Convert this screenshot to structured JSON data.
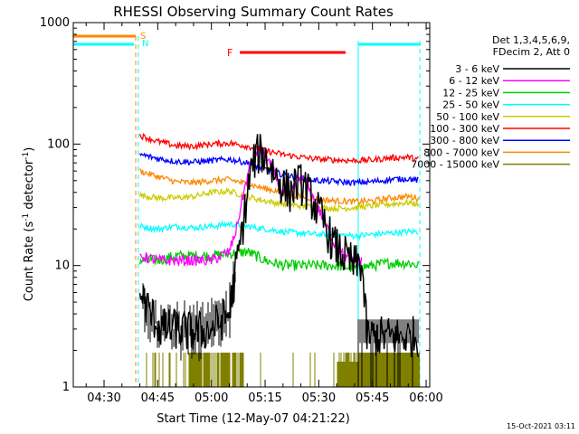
{
  "chart_data": {
    "type": "line",
    "title": "RHESSI Observing Summary Count Rates",
    "xlabel": "Start Time (12-May-07 04:21:22)",
    "ylabel_main": "Count Rate (s",
    "ylabel_sup1": "-1",
    "ylabel_mid": " detector",
    "ylabel_sup2": "-1",
    "ylabel_end": ")",
    "footer": "15-Oct-2021 03:11",
    "yscale": "log",
    "ylim": [
      1,
      1000
    ],
    "xlim_minutes": [
      261.4,
      361
    ],
    "xticks": [
      {
        "label": "04:30",
        "minutes": 270
      },
      {
        "label": "04:45",
        "minutes": 285
      },
      {
        "label": "05:00",
        "minutes": 300
      },
      {
        "label": "05:15",
        "minutes": 315
      },
      {
        "label": "05:30",
        "minutes": 330
      },
      {
        "label": "05:45",
        "minutes": 345
      },
      {
        "label": "06:00",
        "minutes": 360
      }
    ],
    "yticks": [
      {
        "label": "1",
        "value": 1
      },
      {
        "label": "10",
        "value": 10
      },
      {
        "label": "100",
        "value": 100
      },
      {
        "label": "1000",
        "value": 1000
      }
    ],
    "legend_header": [
      "Det 1,3,4,5,6,9,",
      "FDecim 2, Att 0"
    ],
    "series": [
      {
        "name": "3 - 6 keV",
        "color": "#000000",
        "points": [
          [
            280,
            6
          ],
          [
            283,
            4
          ],
          [
            286,
            3
          ],
          [
            290,
            3
          ],
          [
            295,
            2.8
          ],
          [
            300,
            3
          ],
          [
            305,
            4
          ],
          [
            306.5,
            8
          ],
          [
            308,
            15
          ],
          [
            309.5,
            30
          ],
          [
            311,
            60
          ],
          [
            312.5,
            80
          ],
          [
            314,
            85
          ],
          [
            316,
            70
          ],
          [
            318,
            55
          ],
          [
            320,
            45
          ],
          [
            322,
            40
          ],
          [
            324,
            48
          ],
          [
            326,
            45
          ],
          [
            328,
            35
          ],
          [
            331,
            24
          ],
          [
            334,
            15
          ],
          [
            337,
            12
          ],
          [
            340,
            10
          ],
          [
            342,
            10.5
          ],
          [
            343.5,
            2.6
          ],
          [
            346,
            2.6
          ],
          [
            352,
            2.6
          ],
          [
            358,
            2.6
          ]
        ]
      },
      {
        "name": "6 - 12 keV",
        "color": "#ff00ff",
        "points": [
          [
            280,
            12
          ],
          [
            285,
            11
          ],
          [
            290,
            11
          ],
          [
            295,
            11
          ],
          [
            300,
            11
          ],
          [
            305,
            13
          ],
          [
            307,
            20
          ],
          [
            309,
            40
          ],
          [
            311,
            70
          ],
          [
            312.5,
            88
          ],
          [
            314,
            90
          ],
          [
            316,
            72
          ],
          [
            318,
            55
          ],
          [
            320,
            40
          ],
          [
            322,
            38
          ],
          [
            324,
            52
          ],
          [
            326,
            50
          ],
          [
            328,
            38
          ],
          [
            331,
            25
          ],
          [
            334,
            16
          ],
          [
            337,
            12
          ],
          [
            340,
            10.5
          ],
          [
            342,
            11
          ]
        ]
      },
      {
        "name": "12 - 25 keV",
        "color": "#00cc00",
        "points": [
          [
            280,
            11
          ],
          [
            285,
            11
          ],
          [
            290,
            12
          ],
          [
            295,
            12
          ],
          [
            300,
            12
          ],
          [
            305,
            12.5
          ],
          [
            310,
            13
          ],
          [
            315,
            11
          ],
          [
            320,
            10
          ],
          [
            325,
            10
          ],
          [
            330,
            10
          ],
          [
            335,
            10
          ],
          [
            340,
            9.5
          ],
          [
            345,
            10
          ],
          [
            350,
            10.5
          ],
          [
            355,
            10.5
          ],
          [
            358,
            10
          ]
        ]
      },
      {
        "name": "25 - 50 keV",
        "color": "#00ffff",
        "points": [
          [
            280,
            21
          ],
          [
            285,
            20
          ],
          [
            290,
            21
          ],
          [
            295,
            20.5
          ],
          [
            300,
            21
          ],
          [
            305,
            22
          ],
          [
            310,
            21
          ],
          [
            315,
            20
          ],
          [
            320,
            19
          ],
          [
            325,
            18.5
          ],
          [
            330,
            18
          ],
          [
            335,
            18
          ],
          [
            340,
            17.5
          ],
          [
            345,
            18
          ],
          [
            350,
            18.5
          ],
          [
            355,
            19
          ],
          [
            358,
            19
          ]
        ]
      },
      {
        "name": "50 - 100 keV",
        "color": "#cccc00",
        "points": [
          [
            280,
            38
          ],
          [
            285,
            36
          ],
          [
            290,
            36
          ],
          [
            295,
            37
          ],
          [
            300,
            40
          ],
          [
            305,
            41
          ],
          [
            310,
            37
          ],
          [
            315,
            34
          ],
          [
            320,
            32
          ],
          [
            325,
            31
          ],
          [
            330,
            30
          ],
          [
            335,
            29.5
          ],
          [
            340,
            30
          ],
          [
            345,
            31
          ],
          [
            350,
            32
          ],
          [
            355,
            33
          ],
          [
            358,
            32
          ]
        ]
      },
      {
        "name": "100 - 300 keV",
        "color": "#ff0000",
        "points": [
          [
            280,
            118
          ],
          [
            285,
            105
          ],
          [
            290,
            97
          ],
          [
            295,
            96
          ],
          [
            300,
            100
          ],
          [
            305,
            102
          ],
          [
            310,
            96
          ],
          [
            315,
            88
          ],
          [
            320,
            82
          ],
          [
            325,
            78
          ],
          [
            330,
            75
          ],
          [
            335,
            74
          ],
          [
            340,
            73
          ],
          [
            345,
            74
          ],
          [
            350,
            77
          ],
          [
            355,
            78
          ],
          [
            358,
            74
          ]
        ]
      },
      {
        "name": "300 - 800 keV",
        "color": "#0000ff",
        "points": [
          [
            280,
            82
          ],
          [
            285,
            76
          ],
          [
            290,
            72
          ],
          [
            295,
            71
          ],
          [
            300,
            73
          ],
          [
            305,
            75
          ],
          [
            310,
            70
          ],
          [
            315,
            62
          ],
          [
            320,
            56
          ],
          [
            325,
            52
          ],
          [
            330,
            50
          ],
          [
            335,
            49
          ],
          [
            340,
            48
          ],
          [
            345,
            49
          ],
          [
            350,
            51
          ],
          [
            355,
            52
          ],
          [
            358,
            50
          ]
        ]
      },
      {
        "name": "800 - 7000 keV",
        "color": "#ff8800",
        "points": [
          [
            280,
            60
          ],
          [
            285,
            54
          ],
          [
            290,
            49
          ],
          [
            295,
            48
          ],
          [
            300,
            50
          ],
          [
            305,
            51
          ],
          [
            310,
            47
          ],
          [
            315,
            43
          ],
          [
            320,
            40
          ],
          [
            325,
            37
          ],
          [
            330,
            35
          ],
          [
            335,
            34
          ],
          [
            340,
            33.5
          ],
          [
            345,
            34
          ],
          [
            350,
            36
          ],
          [
            355,
            37
          ],
          [
            358,
            36
          ]
        ]
      },
      {
        "name": "7000 - 15000 keV",
        "color": "#808000",
        "points": []
      }
    ],
    "attenuator_label": "S",
    "attenuator_color": "#ff8800",
    "night_label": "N",
    "night_color": "#00ffff",
    "flare_label": "F",
    "flare_color": "#ff0000",
    "flare_interval_minutes": [
      309,
      342
    ]
  }
}
